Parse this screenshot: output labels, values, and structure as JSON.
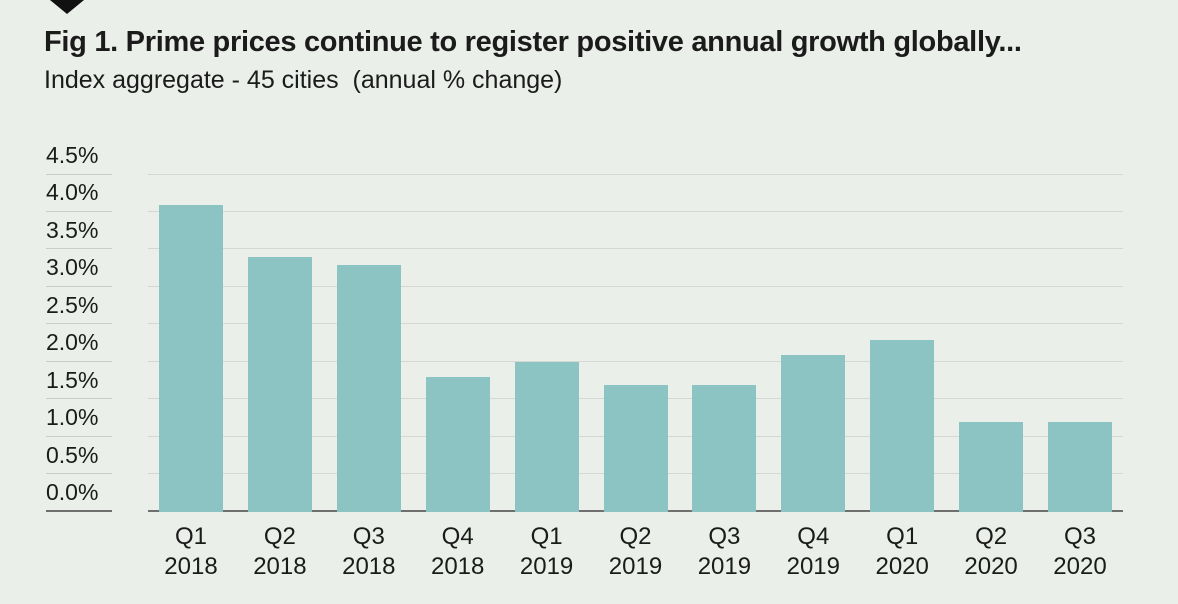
{
  "page": {
    "background_color": "#EAEFE9"
  },
  "header": {
    "marker_icon": "down-triangle",
    "title": "Fig 1. Prime prices continue to register positive annual growth globally...",
    "subtitle": "Index aggregate - 45 cities  (annual % change)"
  },
  "chart_data": {
    "type": "bar",
    "title": "Fig 1. Prime prices continue to register positive annual growth globally...",
    "subtitle": "Index aggregate - 45 cities (annual % change)",
    "categories": [
      "Q1 2018",
      "Q2 2018",
      "Q3 2018",
      "Q4 2018",
      "Q1 2019",
      "Q2 2019",
      "Q3 2019",
      "Q4 2019",
      "Q1 2020",
      "Q2 2020",
      "Q3 2020"
    ],
    "values": [
      4.1,
      3.4,
      3.3,
      1.8,
      2.0,
      1.7,
      1.7,
      2.1,
      2.3,
      1.2,
      1.2
    ],
    "unit": "%",
    "xlabel": "",
    "ylabel": "",
    "ylim": [
      0,
      4.5
    ],
    "ytick_values": [
      4.5,
      4.0,
      3.5,
      3.0,
      2.5,
      2.0,
      1.5,
      1.0,
      0.5,
      0.0
    ],
    "ytick_labels": [
      "4.5%",
      "4.0%",
      "3.5%",
      "3.0%",
      "2.5%",
      "2.0%",
      "1.5%",
      "1.0%",
      "0.5%",
      "0.0%"
    ],
    "grid": true,
    "legend": "none",
    "bar_color": "#8BC4C2",
    "background_color": "#EAEFE9",
    "grid_color": "#D3D8D2",
    "axis_color": "#6F6F6F",
    "text_color": "#1B1B1B"
  }
}
